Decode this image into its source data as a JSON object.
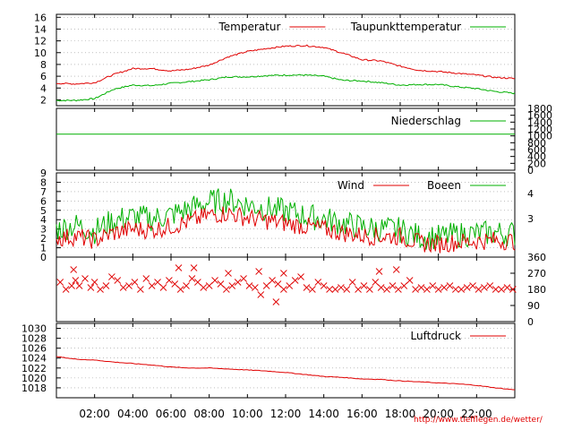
{
  "credit": "http://www.tiefflegen.de/wetter/",
  "colors": {
    "red": "#e00000",
    "green": "#00b000",
    "grid": "#999999",
    "axis": "#000000"
  },
  "chart_data": [
    {
      "type": "line",
      "panel": "temperature",
      "y_ticks": [
        "2",
        "4",
        "6",
        "8",
        "10",
        "12",
        "14",
        "16"
      ],
      "ylim": [
        1,
        16.5
      ],
      "x": [
        0,
        1,
        2,
        3,
        4,
        5,
        6,
        7,
        8,
        9,
        10,
        11,
        12,
        13,
        14,
        15,
        16,
        17,
        18,
        19,
        20,
        21,
        22,
        23,
        24
      ],
      "series": [
        {
          "name": "Temperatur",
          "color": "red",
          "values": [
            4.8,
            4.7,
            4.9,
            6.3,
            7.3,
            7.3,
            6.9,
            7.2,
            7.9,
            9.3,
            10.2,
            10.7,
            11.1,
            11.2,
            10.9,
            9.9,
            8.8,
            8.6,
            7.7,
            7.0,
            6.8,
            6.5,
            6.2,
            5.8,
            5.6
          ]
        },
        {
          "name": "Taupunkttemperatur",
          "color": "green",
          "values": [
            1.9,
            1.9,
            2.2,
            3.8,
            4.5,
            4.4,
            4.8,
            5.1,
            5.4,
            5.9,
            5.9,
            6.1,
            6.2,
            6.2,
            6.0,
            5.3,
            5.2,
            4.9,
            4.5,
            4.6,
            4.6,
            4.2,
            3.9,
            3.4,
            3.1
          ]
        }
      ]
    },
    {
      "type": "line",
      "panel": "precipitation",
      "y_ticks": [
        "0",
        "200",
        "400",
        "600",
        "800",
        "1000",
        "1200",
        "1400",
        "1600",
        "1800"
      ],
      "ylim": [
        0,
        1800
      ],
      "x": [
        0,
        24
      ],
      "series": [
        {
          "name": "Niederschlag",
          "color": "green",
          "values": [
            1050,
            1050
          ]
        }
      ]
    },
    {
      "type": "line",
      "panel": "wind",
      "y_ticks": [
        "0",
        "1",
        "2",
        "3",
        "4",
        "5",
        "6",
        "7",
        "8",
        "9"
      ],
      "right_ticks": [
        "3",
        "4"
      ],
      "right_tick_values": [
        4.1,
        6.8
      ],
      "ylim": [
        0,
        9
      ],
      "x": [
        0,
        1,
        2,
        3,
        4,
        5,
        6,
        7,
        8,
        9,
        10,
        11,
        12,
        13,
        14,
        15,
        16,
        17,
        18,
        19,
        20,
        21,
        22,
        23,
        24
      ],
      "series": [
        {
          "name": "Wind",
          "color": "red",
          "values": [
            2.0,
            2.2,
            1.8,
            2.6,
            3.0,
            2.9,
            3.3,
            3.8,
            4.5,
            4.7,
            4.2,
            3.9,
            3.6,
            3.3,
            3.0,
            2.6,
            2.3,
            2.2,
            2.2,
            1.5,
            1.4,
            1.6,
            1.7,
            1.8,
            1.7
          ]
        },
        {
          "name": "Boeen",
          "color": "green",
          "values": [
            3.0,
            3.4,
            2.8,
            3.9,
            4.3,
            4.1,
            4.5,
            5.2,
            5.9,
            6.1,
            5.6,
            5.2,
            4.9,
            4.4,
            4.1,
            3.6,
            3.2,
            3.0,
            2.9,
            2.2,
            2.1,
            2.4,
            2.5,
            2.6,
            2.5
          ]
        }
      ]
    },
    {
      "type": "scatter",
      "panel": "wind-direction",
      "marker": "x",
      "y_ticks": [
        "0",
        "90",
        "180",
        "270",
        "360"
      ],
      "ylim": [
        0,
        360
      ],
      "x": [
        0.2,
        0.5,
        0.8,
        1.0,
        1.2,
        1.5,
        1.8,
        2.0,
        2.3,
        2.6,
        2.9,
        3.2,
        3.5,
        3.8,
        4.1,
        4.4,
        4.7,
        5.0,
        5.3,
        5.6,
        5.9,
        6.2,
        6.5,
        6.8,
        7.1,
        7.4,
        7.7,
        8.0,
        8.3,
        8.6,
        8.9,
        9.2,
        9.5,
        9.8,
        10.1,
        10.4,
        10.7,
        11.0,
        11.3,
        11.6,
        11.9,
        12.2,
        12.5,
        12.8,
        13.1,
        13.4,
        13.7,
        14.0,
        14.3,
        14.6,
        14.9,
        15.2,
        15.5,
        15.8,
        16.1,
        16.4,
        16.7,
        17.0,
        17.3,
        17.6,
        17.9,
        18.2,
        18.5,
        18.8,
        19.1,
        19.4,
        19.7,
        20.0,
        20.3,
        20.6,
        20.9,
        21.2,
        21.5,
        21.8,
        22.1,
        22.4,
        22.7,
        23.0,
        23.3,
        23.6,
        23.9,
        0.9,
        6.4,
        7.2,
        9.0,
        10.6,
        11.5,
        11.9,
        16.9,
        17.8
      ],
      "values": [
        220,
        180,
        200,
        230,
        200,
        240,
        190,
        220,
        180,
        200,
        250,
        230,
        190,
        200,
        220,
        180,
        240,
        200,
        220,
        190,
        230,
        210,
        180,
        200,
        240,
        220,
        190,
        200,
        230,
        210,
        180,
        200,
        220,
        240,
        200,
        190,
        150,
        200,
        230,
        210,
        180,
        200,
        230,
        250,
        190,
        180,
        220,
        200,
        180,
        180,
        190,
        180,
        220,
        180,
        200,
        180,
        220,
        190,
        180,
        200,
        180,
        200,
        230,
        180,
        190,
        180,
        200,
        180,
        190,
        200,
        180,
        180,
        190,
        200,
        180,
        190,
        200,
        180,
        180,
        190,
        180,
        290,
        300,
        300,
        270,
        280,
        110,
        270,
        280,
        290
      ]
    },
    {
      "type": "line",
      "panel": "pressure",
      "y_ticks": [
        "1018",
        "1020",
        "1022",
        "1024",
        "1026",
        "1028",
        "1030"
      ],
      "ylim": [
        1016,
        1031
      ],
      "x": [
        0,
        1,
        2,
        3,
        4,
        5,
        6,
        7,
        8,
        9,
        10,
        11,
        12,
        13,
        14,
        15,
        16,
        17,
        18,
        19,
        20,
        21,
        22,
        23,
        24
      ],
      "series": [
        {
          "name": "Luftdruck",
          "color": "red",
          "values": [
            1024.3,
            1023.8,
            1023.6,
            1023.2,
            1022.9,
            1022.6,
            1022.2,
            1022.0,
            1022.0,
            1021.8,
            1021.6,
            1021.4,
            1021.1,
            1020.7,
            1020.3,
            1020.1,
            1019.8,
            1019.7,
            1019.4,
            1019.2,
            1019.0,
            1018.8,
            1018.5,
            1018.0,
            1017.6
          ]
        }
      ]
    }
  ],
  "x_ticks": [
    {
      "label": "02:00",
      "hour": 2
    },
    {
      "label": "04:00",
      "hour": 4
    },
    {
      "label": "06:00",
      "hour": 6
    },
    {
      "label": "08:00",
      "hour": 8
    },
    {
      "label": "10:00",
      "hour": 10
    },
    {
      "label": "12:00",
      "hour": 12
    },
    {
      "label": "14:00",
      "hour": 14
    },
    {
      "label": "16:00",
      "hour": 16
    },
    {
      "label": "18:00",
      "hour": 18
    },
    {
      "label": "20:00",
      "hour": 20
    },
    {
      "label": "22:00",
      "hour": 22
    }
  ],
  "x_range_hours": [
    0,
    24
  ]
}
